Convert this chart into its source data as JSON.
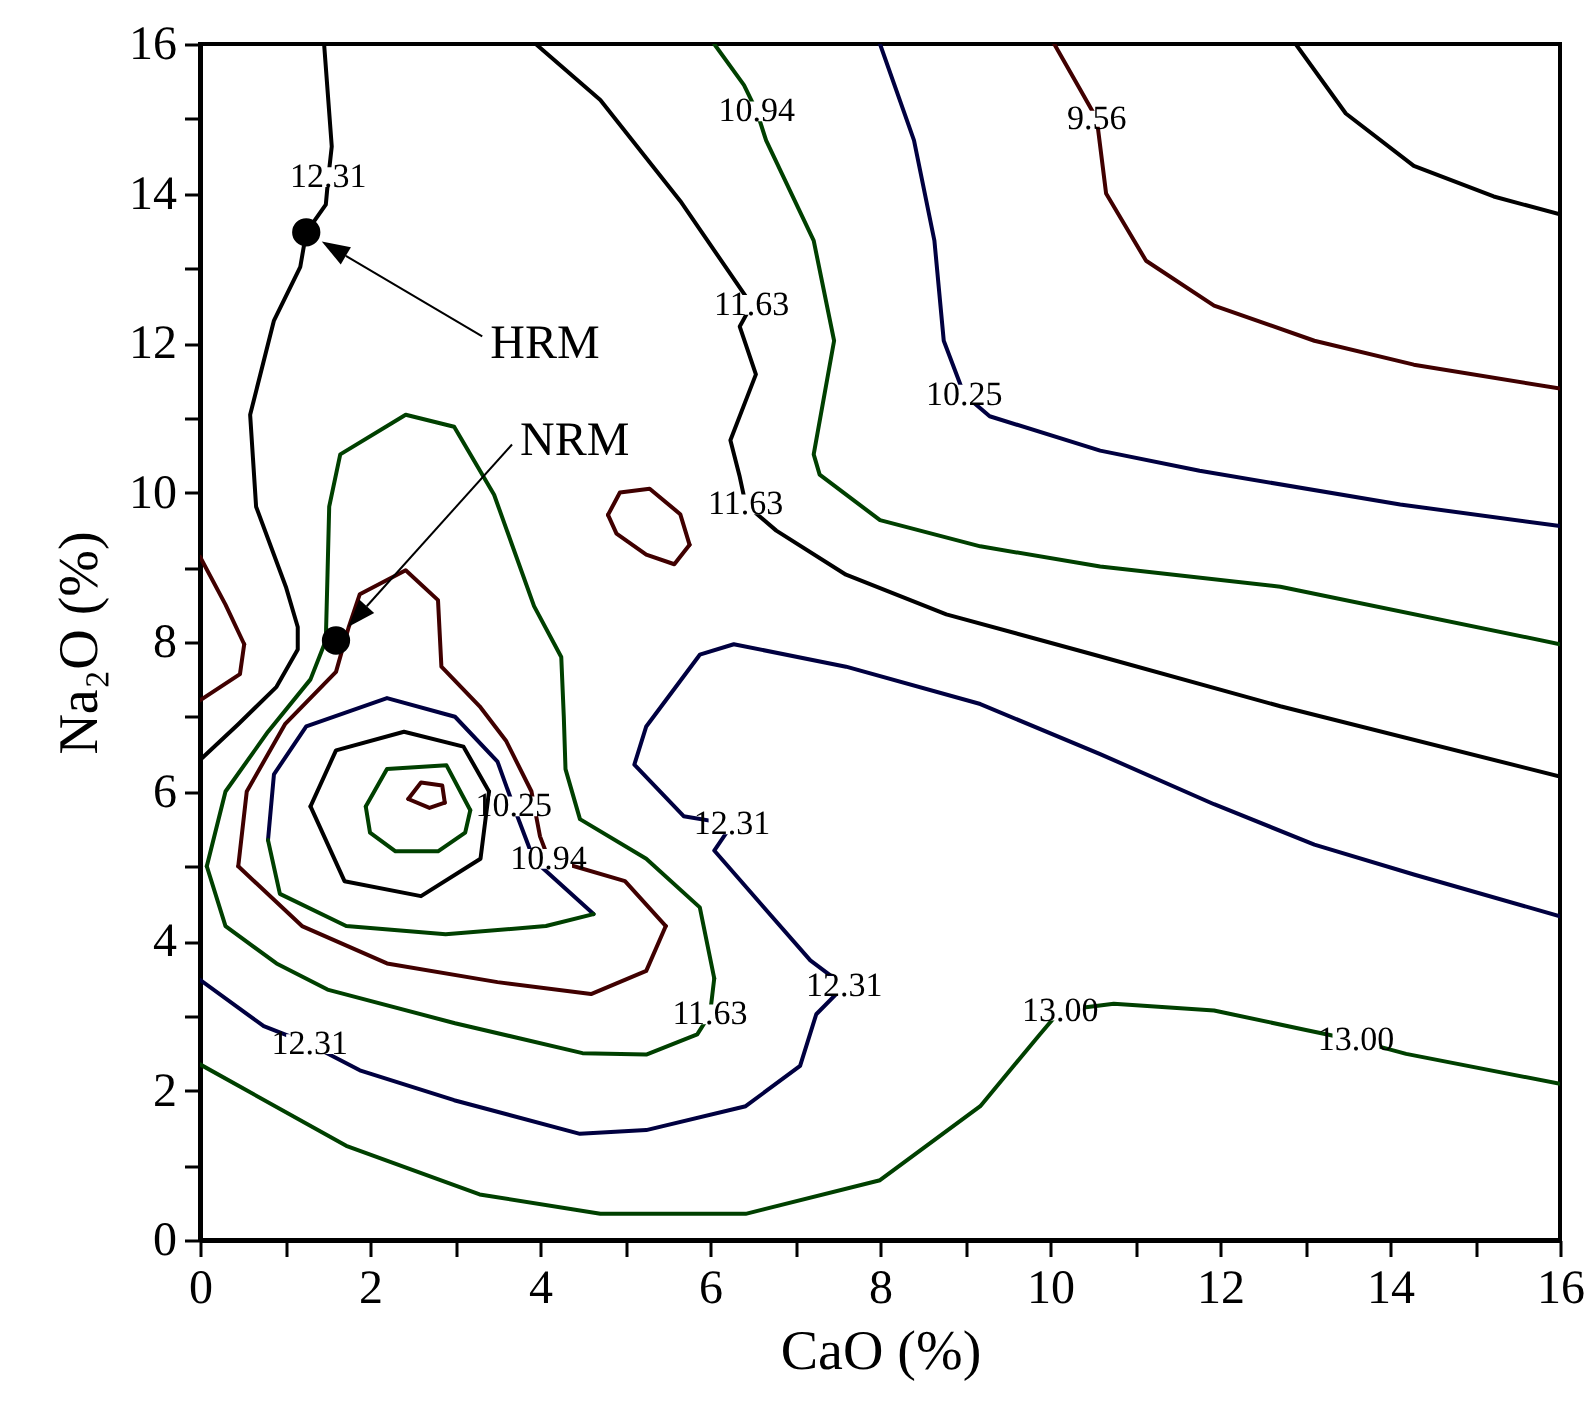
{
  "chart_data": {
    "type": "line",
    "xlabel": "CaO (%)",
    "ylabel": "Na₂O (%)",
    "xlim": [
      0,
      16
    ],
    "ylim": [
      0,
      16
    ],
    "xticks": [
      0,
      {
        "value": 1,
        "label": null
      },
      2,
      {
        "value": 3,
        "label": null
      },
      4,
      {
        "value": 5,
        "label": null
      },
      6,
      {
        "value": 7,
        "label": null
      },
      8,
      {
        "value": 9,
        "label": null
      },
      10,
      {
        "value": 11,
        "label": null
      },
      12,
      {
        "value": 13,
        "label": null
      },
      14,
      {
        "value": 15,
        "label": null
      },
      16
    ],
    "yticks": [
      0,
      {
        "value": 1,
        "label": null
      },
      2,
      {
        "value": 3,
        "label": null
      },
      4,
      {
        "value": 5,
        "label": null
      },
      6,
      {
        "value": 7,
        "label": null
      },
      8,
      {
        "value": 9,
        "label": null
      },
      10,
      {
        "value": 11,
        "label": null
      },
      12,
      {
        "value": 13,
        "label": null
      },
      14,
      {
        "value": 15,
        "label": null
      },
      16
    ],
    "series": [
      {
        "color": "#000000",
        "x": [
          12.89,
          13.48,
          14.28,
          15.22,
          16
        ],
        "values": [
          16,
          15.07,
          14.37,
          13.96,
          13.72
        ]
      },
      {
        "color": "#400000",
        "x": [
          10.05,
          10.35,
          10.55,
          10.66,
          11.13,
          11.93,
          13.11,
          14.28,
          16
        ],
        "values": [
          16,
          15.4,
          15.0,
          14.0,
          13.1,
          12.5,
          12.03,
          11.71,
          11.39
        ]
      },
      {
        "color": "#000040",
        "x": [
          8.0,
          8.4,
          8.64,
          8.75,
          8.99,
          9.29,
          10.59,
          11.76,
          14.12,
          16
        ],
        "values": [
          16,
          14.71,
          13.37,
          12.03,
          11.31,
          11.02,
          10.56,
          10.29,
          9.84,
          9.55
        ]
      },
      {
        "color": "#004000",
        "x": [
          6.05,
          6.4,
          6.55,
          6.66,
          7.22,
          7.46,
          7.22,
          7.29,
          8.0,
          9.18,
          10.59,
          12.71,
          16
        ],
        "values": [
          16,
          15.45,
          15.1,
          14.71,
          13.37,
          12.03,
          10.51,
          10.24,
          9.63,
          9.28,
          9.01,
          8.74,
          7.97
        ]
      },
      {
        "color": "#000000",
        "x": [
          3.95,
          4.71,
          5.65,
          6.49,
          6.35,
          6.54,
          6.24,
          6.35,
          6.42,
          6.78,
          7.6,
          8.78,
          10.52,
          12.71,
          16
        ],
        "values": [
          16,
          15.25,
          13.9,
          12.51,
          12.22,
          11.58,
          10.7,
          10.21,
          9.84,
          9.49,
          8.9,
          8.37,
          7.83,
          7.14,
          6.2
        ]
      },
      {
        "color": "#400000",
        "x": [
          4.8,
          4.94,
          5.29,
          5.65,
          5.76
        ],
        "values": [
          9.7,
          10.0,
          10.05,
          9.71,
          9.3
        ]
      },
      {
        "color": "#400000",
        "x": [
          4.8,
          4.9,
          5.25,
          5.58,
          5.76
        ],
        "values": [
          9.7,
          9.45,
          9.17,
          9.04,
          9.3
        ]
      },
      {
        "color": "#000040",
        "x": [
          16,
          14.28,
          13.11,
          11.93,
          10.59,
          9.18,
          7.6,
          6.28,
          5.88,
          5.25,
          5.11,
          5.69,
          6.26,
          6.05,
          7.18,
          7.58,
          7.25,
          7.06,
          6.42,
          5.25,
          4.47,
          2.99,
          1.88,
          1.29,
          0.75,
          0
        ],
        "values": [
          4.33,
          4.89,
          5.29,
          5.83,
          6.5,
          7.17,
          7.67,
          7.97,
          7.83,
          6.87,
          6.36,
          5.67,
          5.56,
          5.21,
          3.74,
          3.4,
          3.02,
          2.33,
          1.79,
          1.47,
          1.42,
          1.87,
          2.27,
          2.62,
          2.86,
          3.48
        ]
      },
      {
        "color": "#004000",
        "x": [
          0,
          1.72,
          3.29,
          4.71,
          6.42,
          8.0,
          9.18,
          9.88,
          10.12,
          10.75,
          11.93,
          13.01,
          13.6,
          14.19,
          16
        ],
        "values": [
          2.35,
          1.26,
          0.61,
          0.35,
          0.35,
          0.8,
          1.79,
          2.75,
          3.07,
          3.16,
          3.07,
          2.81,
          2.67,
          2.49,
          2.09
        ]
      },
      {
        "color": "#400000",
        "x": [
          0,
          0.3,
          0.52
        ],
        "values": [
          9.14,
          8.5,
          7.97
        ]
      },
      {
        "color": "#400000",
        "x": [
          0,
          0.47,
          0.52
        ],
        "values": [
          7.22,
          7.57,
          7.97
        ]
      },
      {
        "color": "#000000",
        "x": [
          1.46,
          1.55,
          1.51,
          1.48,
          1.25,
          1.18,
          0.87,
          0.59,
          0.66,
          1.01,
          1.15,
          1.15,
          0.9,
          0.45,
          0
        ],
        "values": [
          16,
          14.63,
          14.22,
          13.85,
          13.48,
          13.02,
          12.3,
          11.04,
          9.81,
          8.74,
          8.2,
          7.9,
          7.4,
          6.9,
          6.42
        ]
      },
      {
        "color": "#004000",
        "x": [
          0.08,
          0.3,
          0.9,
          1.5,
          3.0,
          4.5,
          5.25,
          5.85,
          6.0,
          6.05
        ],
        "values": [
          5.0,
          4.2,
          3.7,
          3.35,
          2.9,
          2.5,
          2.48,
          2.75,
          3.02,
          3.5
        ]
      },
      {
        "color": "#004000",
        "x": [
          0.08,
          0.3,
          0.8,
          1.3,
          1.48,
          1.5,
          1.52,
          1.65,
          2.42,
          2.99,
          3.46,
          3.93,
          4.25,
          4.28,
          4.3,
          4.47,
          5.25,
          5.88,
          6.05
        ],
        "values": [
          5.0,
          6.0,
          6.8,
          7.5,
          8.02,
          8.9,
          9.81,
          10.51,
          11.04,
          10.88,
          9.97,
          8.48,
          7.8,
          7.0,
          6.3,
          5.63,
          5.1,
          4.45,
          3.5
        ]
      },
      {
        "color": "#400000",
        "x": [
          0.45,
          0.55,
          1.0,
          1.6,
          1.75,
          1.88,
          2.42,
          2.8,
          2.84,
          3.29,
          3.6,
          3.9,
          4.0,
          4.1,
          5.0,
          5.48
        ],
        "values": [
          5.0,
          6.0,
          6.9,
          7.6,
          8.2,
          8.64,
          8.96,
          8.56,
          7.67,
          7.14,
          6.68,
          6.0,
          5.4,
          5.1,
          4.8,
          4.2
        ]
      },
      {
        "color": "#400000",
        "x": [
          0.45,
          1.2,
          2.2,
          3.5,
          4.6,
          5.25,
          5.48
        ],
        "values": [
          5.0,
          4.2,
          3.7,
          3.45,
          3.29,
          3.6,
          4.2
        ]
      },
      {
        "color": "#000040",
        "x": [
          0.8,
          0.87,
          1.25,
          2.2,
          3.0,
          3.5,
          3.69,
          3.93,
          4.63
        ],
        "values": [
          5.35,
          6.23,
          6.87,
          7.25,
          7.0,
          6.4,
          5.8,
          5.08,
          4.36
        ]
      },
      {
        "color": "#004000",
        "x": [
          0.8,
          0.94,
          1.72,
          2.89,
          4.07,
          4.63
        ],
        "values": [
          5.35,
          4.63,
          4.2,
          4.09,
          4.2,
          4.36
        ]
      },
      {
        "color": "#000000",
        "x": [
          1.3,
          1.6,
          2.4,
          3.1,
          3.4
        ],
        "values": [
          5.8,
          6.55,
          6.8,
          6.6,
          6.0
        ]
      },
      {
        "color": "#000000",
        "x": [
          1.3,
          1.7,
          2.6,
          3.3,
          3.4
        ],
        "values": [
          5.8,
          4.8,
          4.6,
          5.1,
          6.0
        ]
      },
      {
        "color": "#004000",
        "x": [
          1.95,
          2.2,
          2.9,
          3.18
        ],
        "values": [
          5.8,
          6.3,
          6.35,
          5.75
        ]
      },
      {
        "color": "#004000",
        "x": [
          1.95,
          2.0,
          2.3,
          2.8,
          3.12,
          3.18
        ],
        "values": [
          5.8,
          5.45,
          5.2,
          5.2,
          5.45,
          5.75
        ]
      },
      {
        "color": "#400000",
        "x": [
          2.45,
          2.6,
          2.85,
          2.88
        ],
        "values": [
          5.9,
          6.12,
          6.08,
          5.85
        ]
      },
      {
        "color": "#400000",
        "x": [
          2.45,
          2.7,
          2.88
        ],
        "values": [
          5.9,
          5.78,
          5.85
        ]
      },
      {
        "type": "scatter",
        "name": "HRM",
        "marker": "circle",
        "color": "#000000",
        "x": [
          1.25
        ],
        "values": [
          13.48
        ]
      },
      {
        "type": "scatter",
        "name": "NRM",
        "marker": "circle",
        "color": "#000000",
        "x": [
          1.6
        ],
        "values": [
          8.02
        ]
      }
    ],
    "annotations": [
      {
        "text": "12.31",
        "x": 1.51,
        "y": 14.22
      },
      {
        "text": "10.94",
        "x": 6.55,
        "y": 15.1
      },
      {
        "text": "9.56",
        "x": 10.55,
        "y": 15.0
      },
      {
        "text": "11.63",
        "x": 6.49,
        "y": 12.51
      },
      {
        "text": "10.25",
        "x": 8.99,
        "y": 11.31
      },
      {
        "text": "11.63",
        "x": 6.42,
        "y": 9.84
      },
      {
        "text": "10.25",
        "x": 3.69,
        "y": 5.8
      },
      {
        "text": "10.94",
        "x": 4.1,
        "y": 5.1
      },
      {
        "text": "12.31",
        "x": 6.26,
        "y": 5.56
      },
      {
        "text": "12.31",
        "x": 7.58,
        "y": 3.4
      },
      {
        "text": "11.63",
        "x": 6.0,
        "y": 3.02
      },
      {
        "text": "12.31",
        "x": 1.29,
        "y": 2.62
      },
      {
        "text": "13.00",
        "x": 10.12,
        "y": 3.07
      },
      {
        "text": "13.00",
        "x": 13.6,
        "y": 2.67
      }
    ]
  }
}
